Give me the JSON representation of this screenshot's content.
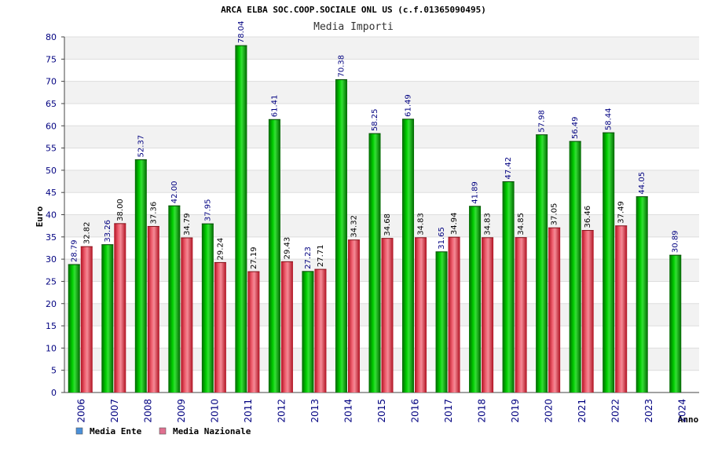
{
  "chart_data": {
    "type": "bar",
    "title": "ARCA ELBA SOC.COOP.SOCIALE ONL US (c.f.01365090495)",
    "subtitle": "Media Importi",
    "xlabel": "Anno",
    "ylabel": "Euro",
    "ylim": [
      0,
      80
    ],
    "yticks": [
      0,
      5,
      10,
      15,
      20,
      25,
      30,
      35,
      40,
      45,
      50,
      55,
      60,
      65,
      70,
      75,
      80
    ],
    "grid": true,
    "legend_position": "bottom-left",
    "categories": [
      "2006",
      "2007",
      "2008",
      "2009",
      "2010",
      "2011",
      "2012",
      "2013",
      "2014",
      "2015",
      "2016",
      "2017",
      "2018",
      "2019",
      "2020",
      "2021",
      "2022",
      "2023",
      "2024"
    ],
    "series": [
      {
        "name": "Media Ente",
        "legend_color": "#4a90d9",
        "bar_color": "#00a000",
        "values": [
          28.79,
          33.26,
          52.37,
          42.0,
          37.95,
          78.04,
          61.41,
          27.23,
          70.38,
          58.25,
          61.49,
          31.65,
          41.89,
          47.42,
          57.98,
          56.49,
          58.44,
          44.05,
          30.89
        ],
        "labels": [
          "28.79",
          "33.26",
          "52.37",
          "42.00",
          "37.95",
          "78.04",
          "61.41",
          "27.23",
          "70.38",
          "58.25",
          "61.49",
          "31.65",
          "41.89",
          "47.42",
          "57.98",
          "56.49",
          "58.44",
          "44.05",
          "30.89"
        ]
      },
      {
        "name": "Media Nazionale",
        "legend_color": "#e07090",
        "bar_color": "#e0303a",
        "values": [
          32.82,
          38.0,
          37.36,
          34.79,
          29.24,
          27.19,
          29.43,
          27.71,
          34.32,
          34.68,
          34.83,
          34.94,
          34.83,
          34.85,
          37.05,
          36.46,
          37.49,
          null,
          null
        ],
        "labels": [
          "32.82",
          "38.00",
          "37.36",
          "34.79",
          "29.24",
          "27.19",
          "29.43",
          "27.71",
          "34.32",
          "34.68",
          "34.83",
          "34.94",
          "34.83",
          "34.85",
          "37.05",
          "36.46",
          "37.49",
          null,
          null
        ]
      }
    ]
  }
}
